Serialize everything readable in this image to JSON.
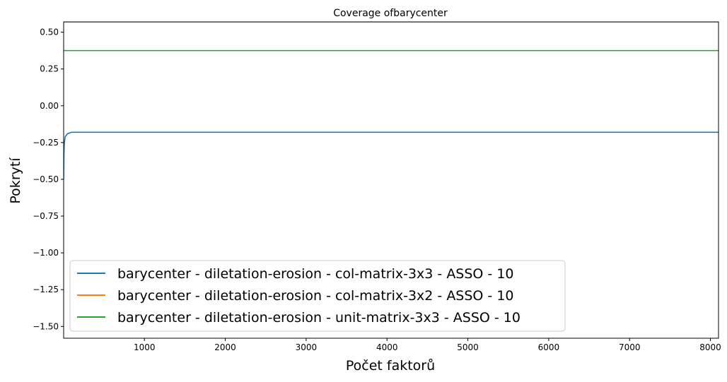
{
  "chart_data": {
    "type": "line",
    "title": "Coverage ofbarycenter",
    "xlabel": "Počet faktorů",
    "ylabel": "Pokrytí",
    "xlim": [
      1,
      8100
    ],
    "ylim": [
      -1.58,
      0.57
    ],
    "xticks": [
      1000,
      2000,
      3000,
      4000,
      5000,
      6000,
      7000,
      8000
    ],
    "yticks": [
      0.5,
      0.25,
      0.0,
      -0.25,
      -0.5,
      -0.75,
      -1.0,
      -1.25,
      -1.5
    ],
    "ytick_labels": [
      "0.50",
      "0.25",
      "0.00",
      "−0.25",
      "−0.50",
      "−0.75",
      "−1.00",
      "−1.25",
      "−1.50"
    ],
    "grid": false,
    "legend_position": "lower-left",
    "series": [
      {
        "name": "barycenter - diletation-erosion - col-matrix-3x3 - ASSO - 10",
        "color": "#1f77b4",
        "x": [
          1,
          5,
          10,
          20,
          50,
          100,
          8100
        ],
        "y": [
          -0.5,
          -0.32,
          -0.25,
          -0.21,
          -0.19,
          -0.18,
          -0.18
        ]
      },
      {
        "name": "barycenter - diletation-erosion - col-matrix-3x2 - ASSO - 10",
        "color": "#ff7f0e",
        "x": [
          1,
          8100
        ],
        "y": [
          0.57,
          0.57
        ]
      },
      {
        "name": "barycenter - diletation-erosion - unit-matrix-3x3 - ASSO - 10",
        "color": "#2ca02c",
        "x": [
          1,
          8100
        ],
        "y": [
          0.375,
          0.375
        ]
      }
    ]
  }
}
